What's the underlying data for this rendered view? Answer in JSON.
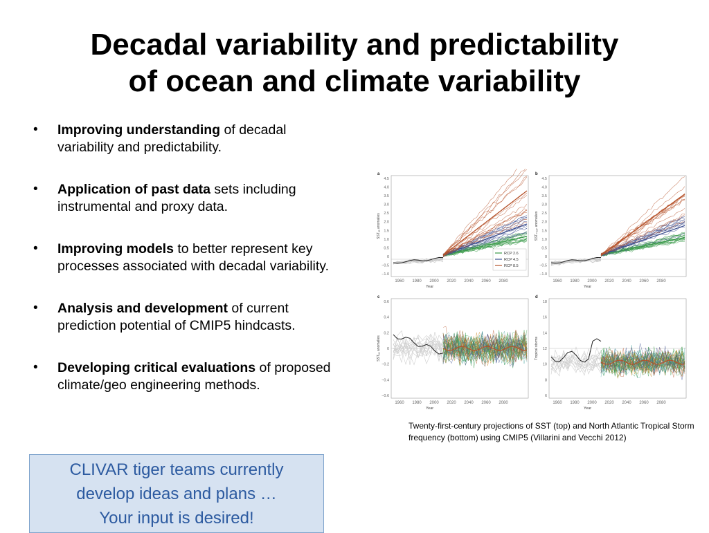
{
  "slide": {
    "title_line1": "Decadal variability and predictability",
    "title_line2": "of ocean and climate variability"
  },
  "bullets": [
    {
      "bold": "Improving understanding",
      "rest": " of decadal variability and predictability."
    },
    {
      "bold": "Application of past data",
      "rest": " sets including instrumental and proxy data."
    },
    {
      "bold": "Improving models",
      "rest": " to better represent key processes associated with decadal variability."
    },
    {
      "bold": "Analysis and development",
      "rest": " of current prediction potential of CMIP5 hindcasts."
    },
    {
      "bold": "Developing critical evaluations",
      "rest": " of proposed climate/geo engineering methods."
    }
  ],
  "callout": {
    "line1": "CLIVAR tiger teams currently",
    "line2": "develop ideas and plans …",
    "line3": "Your input is desired!"
  },
  "figure": {
    "caption": "Twenty-first-century projections of SST (top) and North Atlantic Tropical Storm frequency (bottom) using CMIP5 (Villarini and Vecchi 2012)",
    "panels": [
      {
        "letter": "a",
        "ylabel": "SSTₐₑ anomalies",
        "xlabel": "Year",
        "yticks": [
          "4.5",
          "4.0",
          "3.5",
          "3.0",
          "2.5",
          "2.0",
          "1.5",
          "1.0",
          "0.5",
          "0",
          "−0.5",
          "−1.0"
        ],
        "xticks": [
          "1960",
          "1980",
          "2000",
          "2020",
          "2040",
          "2060",
          "2080"
        ],
        "legend": [
          "RCP 2.6",
          "RCP 4.5",
          "RCP 8.5"
        ]
      },
      {
        "letter": "b",
        "ylabel": "SSTₘₑₐₙ anomalies",
        "xlabel": "Year",
        "yticks": [
          "4.5",
          "4.0",
          "3.5",
          "3.0",
          "2.5",
          "2.0",
          "1.5",
          "1.0",
          "0.5",
          "0",
          "−0.5",
          "−1.0"
        ],
        "xticks": [
          "1960",
          "1980",
          "2000",
          "2020",
          "2040",
          "2060",
          "2080"
        ]
      },
      {
        "letter": "c",
        "ylabel": "SSTₐₑ anomalies",
        "xlabel": "Year",
        "yticks": [
          "0.6",
          "0.4",
          "0.2",
          "0",
          "−0.2",
          "−0.4",
          "−0.6"
        ],
        "xticks": [
          "1960",
          "1980",
          "2000",
          "2020",
          "2040",
          "2060",
          "2080"
        ]
      },
      {
        "letter": "d",
        "ylabel": "Tropical storms",
        "xlabel": "Year",
        "yticks": [
          "18",
          "16",
          "14",
          "12",
          "10",
          "8",
          "6"
        ],
        "xticks": [
          "1960",
          "1980",
          "2000",
          "2020",
          "2040",
          "2060",
          "2080"
        ]
      }
    ],
    "colors": {
      "rcp26": "#3a9a4a",
      "rcp45": "#3d4f8f",
      "rcp85": "#b5522a"
    }
  }
}
